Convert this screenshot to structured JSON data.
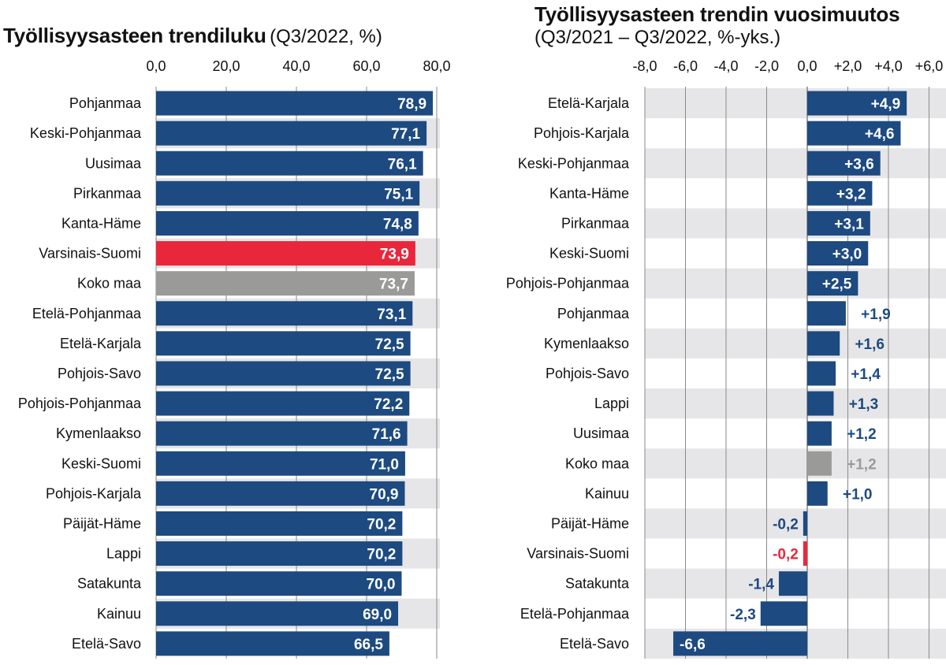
{
  "chart_data": [
    {
      "type": "bar",
      "orientation": "horizontal",
      "title": "Työllisyysasteen trendiluku",
      "subtitle": "(Q3/2022, %)",
      "xlim": [
        0,
        80
      ],
      "ticks": [
        "0,0",
        "20,0",
        "40,0",
        "60,0",
        "80,0"
      ],
      "tick_values": [
        0,
        20,
        40,
        60,
        80
      ],
      "categories": [
        "Pohjanmaa",
        "Keski-Pohjanmaa",
        "Uusimaa",
        "Pirkanmaa",
        "Kanta-Häme",
        "Varsinais-Suomi",
        "Koko maa",
        "Etelä-Pohjanmaa",
        "Etelä-Karjala",
        "Pohjois-Savo",
        "Pohjois-Pohjanmaa",
        "Kymenlaakso",
        "Keski-Suomi",
        "Pohjois-Karjala",
        "Päijät-Häme",
        "Lappi",
        "Satakunta",
        "Kainuu",
        "Etelä-Savo"
      ],
      "values": [
        78.9,
        77.1,
        76.1,
        75.1,
        74.8,
        73.9,
        73.7,
        73.1,
        72.5,
        72.5,
        72.2,
        71.6,
        71.0,
        70.9,
        70.2,
        70.2,
        70.0,
        69.0,
        66.5
      ],
      "labels": [
        "78,9",
        "77,1",
        "76,1",
        "75,1",
        "74,8",
        "73,9",
        "73,7",
        "73,1",
        "72,5",
        "72,5",
        "72,2",
        "71,6",
        "71,0",
        "70,9",
        "70,2",
        "70,2",
        "70,0",
        "69,0",
        "66,5"
      ],
      "highlight": {
        "Varsinais-Suomi": "red",
        "Koko maa": "gray"
      }
    },
    {
      "type": "bar",
      "orientation": "horizontal",
      "title": "Työllisyysasteen trendin vuosimuutos",
      "subtitle": "(Q3/2021 – Q3/2022, %-yks.)",
      "xlim": [
        -8,
        6
      ],
      "ticks": [
        "-8,0",
        "-6,0",
        "-4,0",
        "-2,0",
        "0,0",
        "+2,0",
        "+4,0",
        "+6,0"
      ],
      "tick_values": [
        -8,
        -6,
        -4,
        -2,
        0,
        2,
        4,
        6
      ],
      "categories": [
        "Etelä-Karjala",
        "Pohjois-Karjala",
        "Keski-Pohjanmaa",
        "Kanta-Häme",
        "Pirkanmaa",
        "Keski-Suomi",
        "Pohjois-Pohjanmaa",
        "Pohjanmaa",
        "Kymenlaakso",
        "Pohjois-Savo",
        "Lappi",
        "Uusimaa",
        "Koko maa",
        "Kainuu",
        "Päijät-Häme",
        "Varsinais-Suomi",
        "Satakunta",
        "Etelä-Pohjanmaa",
        "Etelä-Savo"
      ],
      "values": [
        4.9,
        4.6,
        3.6,
        3.2,
        3.1,
        3.0,
        2.5,
        1.9,
        1.6,
        1.4,
        1.3,
        1.2,
        1.2,
        1.0,
        -0.2,
        -0.2,
        -1.4,
        -2.3,
        -6.6
      ],
      "labels": [
        "+4,9",
        "+4,6",
        "+3,6",
        "+3,2",
        "+3,1",
        "+3,0",
        "+2,5",
        "+1,9",
        "+1,6",
        "+1,4",
        "+1,3",
        "+1,2",
        "+1,2",
        "+1,0",
        "-0,2",
        "-0,2",
        "-1,4",
        "-2,3",
        "-6,6"
      ],
      "highlight": {
        "Varsinais-Suomi": "red",
        "Koko maa": "gray"
      }
    }
  ],
  "colors": {
    "bar": "#1d4a80",
    "highlight_red": "#e8283a",
    "highlight_gray": "#9a9a98",
    "band": "#e6e6e8",
    "grid": "#8a8a8a"
  }
}
